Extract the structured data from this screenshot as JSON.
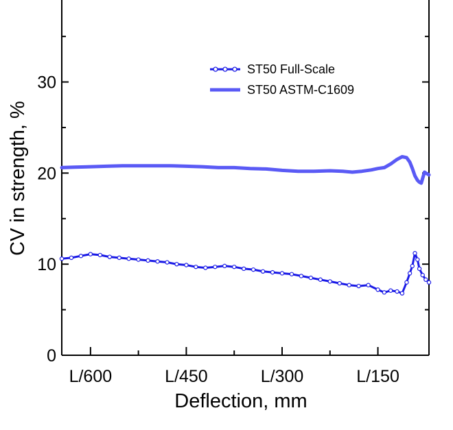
{
  "chart_data": {
    "type": "line",
    "title": "",
    "xlabel": "Deflection, mm",
    "ylabel": "CV in strength, %",
    "xlim": [
      645,
      70
    ],
    "ylim": [
      0,
      39
    ],
    "x_ticks": [
      600,
      450,
      300,
      150
    ],
    "x_tick_labels": [
      "L/600",
      "L/450",
      "L/300",
      "L/150"
    ],
    "y_ticks": [
      0,
      10,
      20,
      30
    ],
    "y_tick_labels": [
      "0",
      "10",
      "20",
      "30"
    ],
    "grid": false,
    "legend_position": "top-right",
    "series": [
      {
        "name": "ST50 Full-Scale",
        "color": "#1a1ae6",
        "marker": "open-circle",
        "x": [
          645,
          630,
          615,
          600,
          585,
          570,
          555,
          540,
          525,
          510,
          495,
          480,
          465,
          450,
          435,
          420,
          405,
          390,
          375,
          360,
          345,
          330,
          315,
          300,
          285,
          270,
          255,
          240,
          225,
          210,
          195,
          180,
          165,
          150,
          140,
          130,
          120,
          112,
          105,
          100,
          96,
          92,
          88,
          85,
          80,
          75,
          70
        ],
        "y": [
          10.6,
          10.7,
          10.9,
          11.1,
          11.0,
          10.8,
          10.7,
          10.6,
          10.5,
          10.4,
          10.3,
          10.2,
          10.0,
          9.9,
          9.7,
          9.6,
          9.7,
          9.8,
          9.7,
          9.5,
          9.4,
          9.2,
          9.1,
          9.0,
          8.9,
          8.7,
          8.5,
          8.3,
          8.1,
          7.9,
          7.7,
          7.6,
          7.7,
          7.2,
          6.9,
          7.1,
          7.0,
          6.8,
          8.0,
          9.0,
          9.8,
          11.2,
          10.5,
          9.5,
          8.8,
          8.3,
          8.0
        ]
      },
      {
        "name": "ST50 ASTM-C1609",
        "color": "#5a5af5",
        "x": [
          645,
          625,
          600,
          575,
          550,
          525,
          500,
          475,
          450,
          425,
          400,
          375,
          350,
          325,
          300,
          275,
          250,
          225,
          205,
          190,
          175,
          160,
          150,
          140,
          130,
          120,
          112,
          105,
          100,
          96,
          92,
          88,
          85,
          82,
          80,
          77,
          75,
          72,
          70
        ],
        "y": [
          20.6,
          20.65,
          20.7,
          20.75,
          20.8,
          20.8,
          20.8,
          20.8,
          20.75,
          20.7,
          20.6,
          20.6,
          20.5,
          20.45,
          20.3,
          20.2,
          20.2,
          20.25,
          20.2,
          20.1,
          20.2,
          20.35,
          20.5,
          20.6,
          21.0,
          21.5,
          21.8,
          21.7,
          21.2,
          20.5,
          19.7,
          19.2,
          19.0,
          18.9,
          19.4,
          20.1,
          20.0,
          19.9,
          19.8
        ]
      }
    ]
  }
}
